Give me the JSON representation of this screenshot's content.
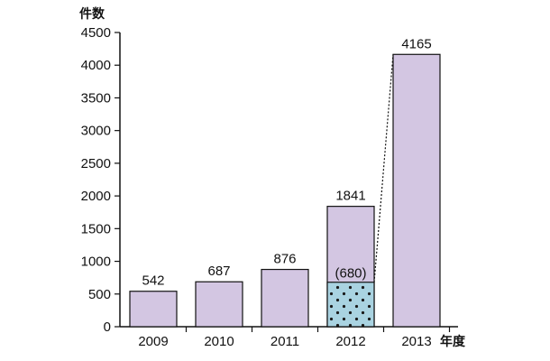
{
  "chart_data": {
    "type": "bar",
    "y_unit_label": "件数",
    "x_unit_label": "年度",
    "categories": [
      "2009",
      "2010",
      "2011",
      "2012",
      "2013"
    ],
    "values": [
      542,
      687,
      876,
      1841,
      4165
    ],
    "value_labels": [
      "542",
      "687",
      "876",
      "1841",
      "4165"
    ],
    "sub_values": [
      null,
      null,
      null,
      680,
      null
    ],
    "sub_value_labels": [
      "",
      "",
      "",
      "(680)",
      ""
    ],
    "ylim": [
      0,
      4500
    ],
    "yticks": [
      0,
      500,
      1000,
      1500,
      2000,
      2500,
      3000,
      3500,
      4000,
      4500
    ],
    "grid": false,
    "colors": {
      "bar_fill": "#d3c6e2",
      "sub_fill": "#a9d3e1",
      "sub_dots": "#1a1a1a",
      "outline": "#111111"
    },
    "connector_line": "dotted line from top of 2012 sub-bar to top of 2013 bar"
  }
}
